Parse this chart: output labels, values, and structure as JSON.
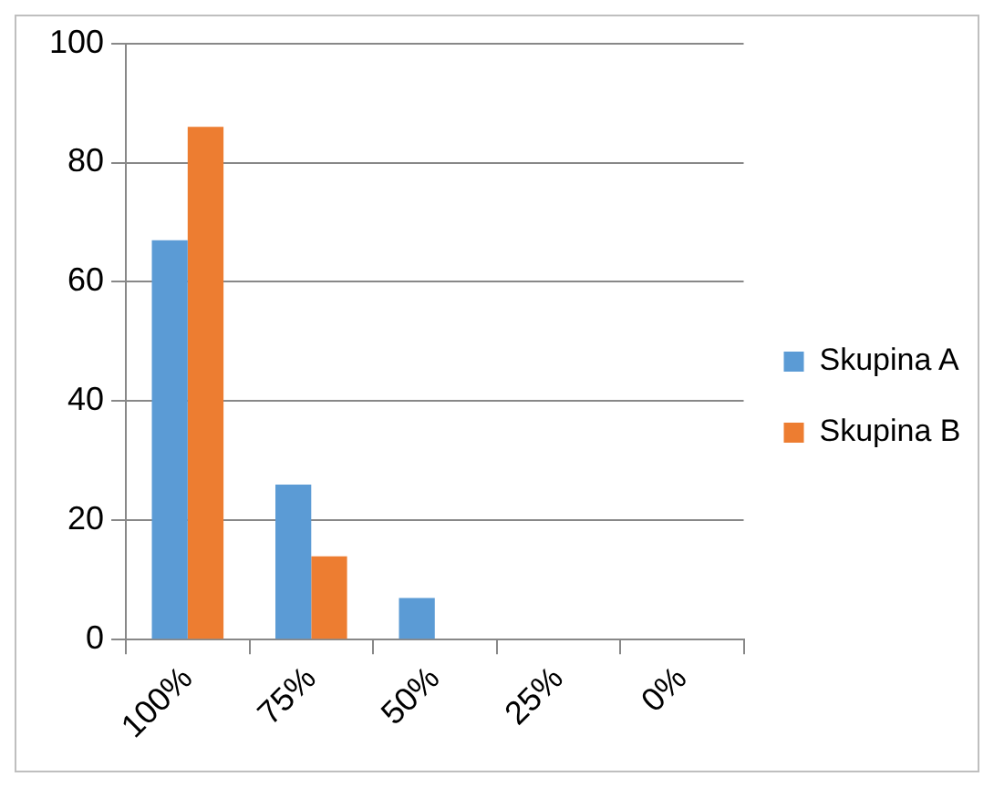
{
  "chart_data": {
    "type": "bar",
    "categories": [
      "100%",
      "75%",
      "50%",
      "25%",
      "0%"
    ],
    "series": [
      {
        "name": "Skupina A",
        "color": "#5b9bd5",
        "values": [
          67,
          26,
          7,
          0,
          0
        ]
      },
      {
        "name": "Skupina B",
        "color": "#ed7d31",
        "values": [
          86,
          14,
          0,
          0,
          0
        ]
      }
    ],
    "ylim": [
      0,
      100
    ],
    "yticks": [
      0,
      20,
      40,
      60,
      80,
      100
    ],
    "grid": "y",
    "legend": "right"
  }
}
